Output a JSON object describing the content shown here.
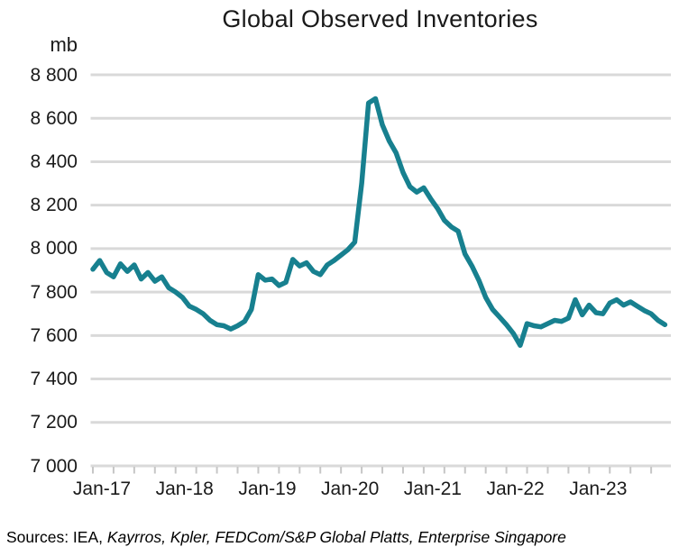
{
  "chart_data": {
    "type": "line",
    "title": "Global Observed Inventories",
    "ylabel": "mb",
    "xlabel": "",
    "ylim": [
      7000,
      8800
    ],
    "ytick_step": 200,
    "grid": "horizontal",
    "legend": "none",
    "line_color": "#17808F",
    "gridline_color": "#D9D9D9",
    "tick_color": "#C6C6C6",
    "y_tick_labels": [
      "8 800",
      "8 600",
      "8 400",
      "8 200",
      "8 000",
      "7 800",
      "7 600",
      "7 400",
      "7 200",
      "7 000"
    ],
    "x_tick_labels": [
      "Jan-17",
      "Jan-18",
      "Jan-19",
      "Jan-20",
      "Jan-21",
      "Jan-22",
      "Jan-23"
    ],
    "x_tick_month_indices": [
      0,
      12,
      24,
      36,
      48,
      60,
      72
    ],
    "minor_tick_every_months": 3,
    "series": [
      {
        "name": "Global observed inventories",
        "x": [
          "Jan-17",
          "Feb-17",
          "Mar-17",
          "Apr-17",
          "May-17",
          "Jun-17",
          "Jul-17",
          "Aug-17",
          "Sep-17",
          "Oct-17",
          "Nov-17",
          "Dec-17",
          "Jan-18",
          "Feb-18",
          "Mar-18",
          "Apr-18",
          "May-18",
          "Jun-18",
          "Jul-18",
          "Aug-18",
          "Sep-18",
          "Oct-18",
          "Nov-18",
          "Dec-18",
          "Jan-19",
          "Feb-19",
          "Mar-19",
          "Apr-19",
          "May-19",
          "Jun-19",
          "Jul-19",
          "Aug-19",
          "Sep-19",
          "Oct-19",
          "Nov-19",
          "Dec-19",
          "Jan-20",
          "Feb-20",
          "Mar-20",
          "Apr-20",
          "May-20",
          "Jun-20",
          "Jul-20",
          "Aug-20",
          "Sep-20",
          "Oct-20",
          "Nov-20",
          "Dec-20",
          "Jan-21",
          "Feb-21",
          "Mar-21",
          "Apr-21",
          "May-21",
          "Jun-21",
          "Jul-21",
          "Aug-21",
          "Sep-21",
          "Oct-21",
          "Nov-21",
          "Dec-21",
          "Jan-22",
          "Feb-22",
          "Mar-22",
          "Apr-22",
          "May-22",
          "Jun-22",
          "Jul-22",
          "Aug-22",
          "Sep-22",
          "Oct-22",
          "Nov-22",
          "Dec-22",
          "Jan-23",
          "Feb-23",
          "Mar-23",
          "Apr-23",
          "May-23",
          "Jun-23",
          "Jul-23",
          "Aug-23",
          "Sep-23",
          "Oct-23",
          "Nov-23",
          "Dec-23"
        ],
        "values": [
          7905,
          7945,
          7890,
          7870,
          7930,
          7895,
          7925,
          7860,
          7890,
          7850,
          7870,
          7820,
          7800,
          7775,
          7735,
          7720,
          7700,
          7670,
          7650,
          7645,
          7630,
          7645,
          7665,
          7720,
          7880,
          7855,
          7860,
          7830,
          7845,
          7950,
          7920,
          7935,
          7895,
          7880,
          7925,
          7945,
          7970,
          7995,
          8030,
          8300,
          8670,
          8690,
          8570,
          8495,
          8440,
          8350,
          8285,
          8260,
          8280,
          8230,
          8185,
          8130,
          8100,
          8080,
          7975,
          7920,
          7855,
          7775,
          7720,
          7685,
          7650,
          7610,
          7555,
          7655,
          7645,
          7640,
          7655,
          7670,
          7665,
          7680,
          7765,
          7695,
          7740,
          7705,
          7700,
          7750,
          7765,
          7740,
          7755,
          7735,
          7715,
          7700,
          7670,
          7650
        ]
      }
    ]
  },
  "footer": {
    "sources_prefix": "Sources: IEA, ",
    "sources_italic": "Kayrros, Kpler, FEDCom/S&P Global Platts, Enterprise Singapore"
  }
}
